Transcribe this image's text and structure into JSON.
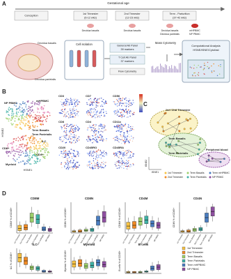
{
  "panel_a": {
    "letter": "A",
    "axis_label": "Gestational age",
    "stages": [
      {
        "lines": [
          "Conception"
        ]
      },
      {
        "lines": [
          "1st Trimester",
          "(6-12 wks)"
        ],
        "tissues": [
          "Decidua basalis"
        ]
      },
      {
        "lines": [
          "2nd Trimester",
          "(12-23 wks)"
        ],
        "tissues": [
          "Decidua basalis"
        ]
      },
      {
        "lines": [
          "Term - Parturition",
          "(37-42 wks)"
        ],
        "tissues": [
          "Decidua basalis",
          "Decidua parietalis",
          "mHPBMC",
          "NP PBMC"
        ]
      }
    ],
    "uterus_labels": [
      "Decidua basalis",
      "Decidua parietalis"
    ],
    "cell_isolation": "Cell isolation",
    "panels": [
      [
        "General Ab Panel",
        "39 markers"
      ],
      [
        "T Cell Ab Panel",
        "37 markers"
      ]
    ],
    "flow": "Flow Cytometry",
    "mass": "Mass Cytometry",
    "analysis": [
      "Computational Analysis",
      "HSNE/tSNE/Cytofast"
    ]
  },
  "panel_b": {
    "letter": "B",
    "map_labels": [
      "NP PBMC",
      "mHPBMC",
      "Term Basalis",
      "Term Parietalis",
      "ILC",
      "CD8+",
      "CD4+",
      "Myeloid"
    ],
    "markers": [
      "CD3",
      "CD7",
      "CD56",
      "CD8",
      "CD4",
      "CD11c",
      "CD20",
      "CD45RO",
      "CD45RA"
    ],
    "x_label": "HSNE1",
    "y_label": "HSNE2"
  },
  "panel_c": {
    "letter": "C",
    "clusters": [
      "1st / 2nd Trimester",
      "Term Basalis",
      "Term Parietalis",
      "Peripheral blood"
    ],
    "x_label": "tSNE1",
    "y_label": "tSNE2",
    "legend": [
      "1st Trimester",
      "2nd Trimester",
      "Term Basalis",
      "Term Parietalis",
      "Term mHPBMC",
      "NP PBMC"
    ],
    "colors": [
      "#f6c142",
      "#f08a24",
      "#9ccf6a",
      "#3fb0a5",
      "#4a7dc0",
      "#8e4fa0"
    ]
  },
  "panel_d": {
    "letter": "D",
    "groups": [
      "1st Trimester",
      "2nd Trimester",
      "Term Basalis",
      "Term Parietalis",
      "Term mHPBMC",
      "NP PBMC"
    ],
    "colors": [
      "#f6c142",
      "#f08a24",
      "#9ccf6a",
      "#3fb0a5",
      "#4a7dc0",
      "#8e4fa0"
    ],
    "charts": [
      {
        "title": "CD8M",
        "ylabel": "CD8M % of CD45+",
        "ylim": [
          0,
          40
        ],
        "boxes": [
          [
            1,
            3,
            6,
            10,
            15
          ],
          [
            2,
            4,
            7,
            11,
            16
          ],
          [
            8,
            14,
            20,
            26,
            34
          ],
          [
            6,
            12,
            18,
            24,
            30
          ],
          [
            1,
            3,
            5,
            8,
            12
          ],
          [
            1,
            2,
            4,
            6,
            9
          ]
        ]
      },
      {
        "title": "CD8N",
        "ylabel": "CD8N % of CD45+",
        "ylim": [
          0,
          40
        ],
        "boxes": [
          [
            0.5,
            1,
            2,
            3,
            5
          ],
          [
            0.5,
            1,
            2,
            4,
            6
          ],
          [
            1,
            2,
            3,
            5,
            8
          ],
          [
            1,
            2,
            4,
            6,
            9
          ],
          [
            5,
            10,
            16,
            22,
            30
          ],
          [
            8,
            14,
            20,
            28,
            36
          ]
        ]
      },
      {
        "title": "CD4M",
        "ylabel": "CD4M % of CD45+",
        "ylim": [
          0,
          40
        ],
        "boxes": [
          [
            2,
            5,
            9,
            14,
            20
          ],
          [
            3,
            6,
            10,
            15,
            22
          ],
          [
            5,
            10,
            15,
            20,
            28
          ],
          [
            6,
            12,
            17,
            22,
            30
          ],
          [
            4,
            8,
            12,
            16,
            22
          ],
          [
            3,
            6,
            10,
            14,
            20
          ]
        ]
      },
      {
        "title": "CD4N",
        "ylabel": "CD4N % of CD45+",
        "ylim": [
          0,
          40
        ],
        "boxes": [
          [
            0.5,
            1,
            2,
            3,
            5
          ],
          [
            0.5,
            1,
            2,
            4,
            6
          ],
          [
            1,
            2,
            4,
            6,
            9
          ],
          [
            1,
            3,
            5,
            7,
            10
          ],
          [
            8,
            14,
            20,
            26,
            34
          ],
          [
            15,
            22,
            28,
            34,
            38
          ]
        ]
      },
      {
        "title": "ILC",
        "ylabel": "ILC % of CD45+",
        "ylim": [
          0,
          40
        ],
        "boxes": [
          [
            10,
            18,
            25,
            32,
            38
          ],
          [
            8,
            14,
            20,
            26,
            32
          ],
          [
            3,
            6,
            9,
            12,
            16
          ],
          [
            2,
            5,
            8,
            11,
            14
          ],
          [
            1,
            2,
            3,
            5,
            7
          ],
          [
            1,
            2,
            3,
            4,
            6
          ]
        ]
      },
      {
        "title": "Myeloid",
        "ylabel": "Myeloid % of CD45+",
        "ylim": [
          0,
          40
        ],
        "boxes": [
          [
            5,
            10,
            15,
            20,
            26
          ],
          [
            6,
            11,
            16,
            22,
            28
          ],
          [
            4,
            8,
            12,
            16,
            22
          ],
          [
            4,
            9,
            13,
            18,
            24
          ],
          [
            6,
            12,
            17,
            22,
            28
          ],
          [
            5,
            10,
            14,
            19,
            25
          ]
        ]
      },
      {
        "title": "B cells",
        "ylabel": "B cells % of CD45+",
        "ylim": [
          0,
          40
        ],
        "boxes": [
          [
            0.5,
            1,
            2,
            3,
            5
          ],
          [
            0.5,
            1,
            2,
            3,
            4
          ],
          [
            0.5,
            1,
            2,
            3,
            5
          ],
          [
            1,
            2,
            3,
            4,
            6
          ],
          [
            2,
            5,
            8,
            12,
            18
          ],
          [
            3,
            6,
            10,
            14,
            20
          ]
        ]
      }
    ]
  }
}
